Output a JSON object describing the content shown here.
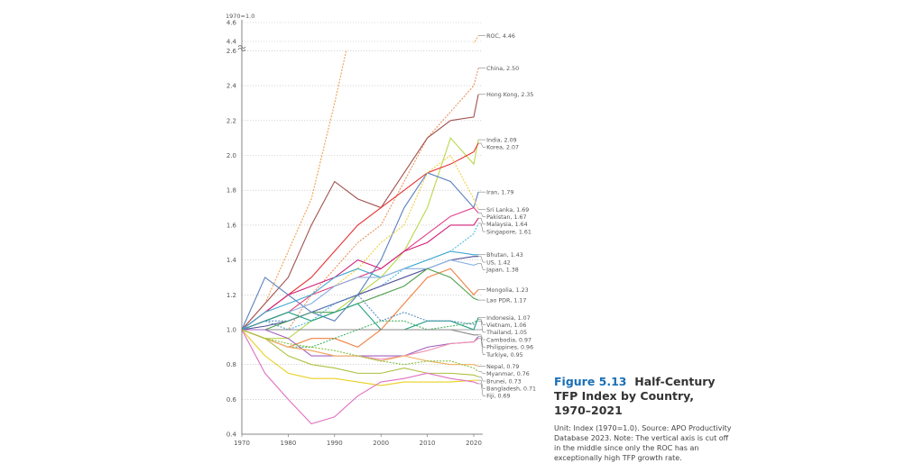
{
  "chart_data": {
    "type": "line",
    "title": "Half-Century TFP Index by Country, 1970–2021",
    "figure_label": "Figure 5.13",
    "unit_label": "1970=1.0",
    "note": "Unit: Index (1970=1.0). Source: APO Productivity Database 2023. Note: The vertical axis is cut off in the middle since only the ROC has an exceptionally high TFP growth rate.",
    "x_ticks": [
      "1970",
      "1980",
      "1990",
      "2000",
      "2010",
      "2020"
    ],
    "y_ticks_lower": [
      "0.4",
      "0.6",
      "0.8",
      "1.0",
      "1.2",
      "1.4",
      "1.6",
      "1.8",
      "2.0",
      "2.2",
      "2.4",
      "2.6"
    ],
    "y_ticks_upper": [
      "4.4",
      "4.6"
    ],
    "xlim": [
      1970,
      2021
    ],
    "ylim_lower": [
      0.4,
      2.6
    ],
    "ylim_upper": [
      4.4,
      4.6
    ],
    "axis_break": true,
    "grid": "horizontal dotted",
    "x": [
      1970,
      1975,
      1980,
      1985,
      1990,
      1995,
      2000,
      2005,
      2010,
      2015,
      2020,
      2021
    ],
    "series": [
      {
        "name": "ROC",
        "label": "ROC, 4.46",
        "color": "#f0a050",
        "dashed": true,
        "values": [
          1,
          1.15,
          1.45,
          1.75,
          2.3,
          2.9,
          3.2,
          3.5,
          3.9,
          4.2,
          4.38,
          4.46
        ]
      },
      {
        "name": "China",
        "label": "China, 2.50",
        "color": "#e8925a",
        "dashed": true,
        "values": [
          1,
          1.05,
          1.0,
          1.2,
          1.35,
          1.5,
          1.6,
          1.85,
          2.1,
          2.25,
          2.4,
          2.5
        ]
      },
      {
        "name": "Hong Kong",
        "label": "Hong Kong, 2.35",
        "color": "#a0524f",
        "dashed": false,
        "values": [
          1,
          1.15,
          1.3,
          1.6,
          1.85,
          1.75,
          1.7,
          1.9,
          2.1,
          2.2,
          2.22,
          2.35
        ]
      },
      {
        "name": "India",
        "label": "India, 2.09",
        "color": "#b8d84a",
        "dashed": false,
        "values": [
          1,
          0.95,
          0.95,
          1.05,
          1.1,
          1.2,
          1.3,
          1.45,
          1.7,
          2.1,
          1.95,
          2.09
        ]
      },
      {
        "name": "Korea",
        "label": "Korea, 2.07",
        "color": "#e63030",
        "dashed": false,
        "values": [
          1,
          1.1,
          1.2,
          1.3,
          1.45,
          1.6,
          1.7,
          1.8,
          1.9,
          1.95,
          2.02,
          2.07
        ]
      },
      {
        "name": "Iran",
        "label": "Iran, 1.79",
        "color": "#5b7fbf",
        "dashed": false,
        "values": [
          1,
          1.3,
          1.2,
          1.1,
          1.05,
          1.2,
          1.4,
          1.7,
          1.9,
          1.85,
          1.7,
          1.79
        ]
      },
      {
        "name": "Sri Lanka",
        "label": "Sri Lanka, 1.69",
        "color": "#f0d040",
        "dashed": true,
        "values": [
          1,
          1.05,
          1.1,
          1.2,
          1.25,
          1.35,
          1.5,
          1.6,
          1.9,
          2.0,
          1.75,
          1.69
        ]
      },
      {
        "name": "Pakistan",
        "label": "Pakistan, 1.67",
        "color": "#e0408a",
        "dashed": false,
        "values": [
          1,
          1.05,
          1.1,
          1.2,
          1.25,
          1.3,
          1.35,
          1.45,
          1.55,
          1.65,
          1.7,
          1.67
        ]
      },
      {
        "name": "Malaysia",
        "label": "Malaysia, 1.64",
        "color": "#d0207a",
        "dashed": false,
        "values": [
          1,
          1.1,
          1.2,
          1.25,
          1.3,
          1.4,
          1.35,
          1.45,
          1.5,
          1.6,
          1.6,
          1.64
        ]
      },
      {
        "name": "Singapore",
        "label": "Singapore, 1.61",
        "color": "#50b8e0",
        "dashed": true,
        "values": [
          1,
          1.05,
          1.0,
          1.05,
          1.15,
          1.2,
          1.25,
          1.35,
          1.4,
          1.45,
          1.55,
          1.61
        ]
      },
      {
        "name": "Bhutan",
        "label": "Bhutan, 1.43",
        "color": "#40a8d0",
        "dashed": false,
        "values": [
          1,
          1.1,
          1.15,
          1.2,
          1.3,
          1.35,
          1.3,
          1.35,
          1.4,
          1.45,
          1.43,
          1.43
        ]
      },
      {
        "name": "US",
        "label": "US, 1.42",
        "color": "#50509a",
        "dashed": false,
        "values": [
          1,
          1.02,
          1.05,
          1.1,
          1.15,
          1.2,
          1.25,
          1.3,
          1.35,
          1.4,
          1.42,
          1.42
        ]
      },
      {
        "name": "Japan",
        "label": "Japan, 1.38",
        "color": "#8ab0e0",
        "dashed": false,
        "values": [
          1,
          1.05,
          1.1,
          1.15,
          1.25,
          1.3,
          1.3,
          1.35,
          1.35,
          1.4,
          1.37,
          1.38
        ]
      },
      {
        "name": "Mongolia",
        "label": "Mongolia, 1.23",
        "color": "#f08040",
        "dashed": false,
        "values": [
          1,
          0.95,
          0.9,
          0.95,
          0.95,
          0.9,
          1.0,
          1.15,
          1.3,
          1.35,
          1.2,
          1.23
        ]
      },
      {
        "name": "Lao PDR",
        "label": "Lao PDR, 1.17",
        "color": "#50a050",
        "dashed": false,
        "values": [
          1,
          1.0,
          1.05,
          1.1,
          1.1,
          1.15,
          1.2,
          1.25,
          1.35,
          1.3,
          1.18,
          1.17
        ]
      },
      {
        "name": "Indonesia",
        "label": "Indonesia, 1.07",
        "color": "#20a080",
        "dashed": false,
        "values": [
          1,
          1.05,
          1.1,
          1.05,
          1.1,
          1.15,
          1.0,
          1.0,
          1.05,
          1.05,
          1.0,
          1.07
        ]
      },
      {
        "name": "Vietnam",
        "label": "Vietnam, 1.06",
        "color": "#40b060",
        "dashed": true,
        "values": [
          1,
          0.95,
          0.9,
          0.9,
          0.95,
          1.0,
          1.05,
          1.05,
          1.0,
          1.02,
          1.04,
          1.06
        ]
      },
      {
        "name": "Thailand",
        "label": "Thailand, 1.05",
        "color": "#5a90c0",
        "dashed": true,
        "values": [
          1,
          1.05,
          1.05,
          1.1,
          1.15,
          1.2,
          1.05,
          1.1,
          1.05,
          1.05,
          1.03,
          1.05
        ]
      },
      {
        "name": "Cambodia",
        "label": "Cambodia, 0.97",
        "color": "#888888",
        "dashed": false,
        "values": [
          1,
          1,
          1,
          1,
          1,
          1,
          1,
          1,
          1,
          1,
          0.97,
          0.97
        ]
      },
      {
        "name": "Philippines",
        "label": "Philippines, 0.96",
        "color": "#a060c0",
        "dashed": false,
        "values": [
          1,
          1.0,
          0.95,
          0.85,
          0.85,
          0.85,
          0.85,
          0.85,
          0.9,
          0.92,
          0.93,
          0.96
        ]
      },
      {
        "name": "Turkiye",
        "label": "Turkiye, 0.95",
        "color": "#f090b0",
        "dashed": false,
        "values": [
          1,
          0.95,
          0.9,
          0.88,
          0.85,
          0.85,
          0.83,
          0.85,
          0.88,
          0.92,
          0.93,
          0.95
        ]
      },
      {
        "name": "Nepal",
        "label": "Nepal, 0.79",
        "color": "#f0b060",
        "dashed": false,
        "values": [
          1,
          0.95,
          0.9,
          0.88,
          0.85,
          0.85,
          0.82,
          0.85,
          0.82,
          0.8,
          0.8,
          0.79
        ]
      },
      {
        "name": "Myanmar",
        "label": "Myanmar, 0.76",
        "color": "#80c040",
        "dashed": true,
        "values": [
          1,
          0.95,
          0.92,
          0.9,
          0.88,
          0.85,
          0.82,
          0.8,
          0.82,
          0.82,
          0.78,
          0.76
        ]
      },
      {
        "name": "Brunei",
        "label": "Brunei, 0.73",
        "color": "#b0c040",
        "dashed": false,
        "values": [
          1,
          0.95,
          0.85,
          0.8,
          0.78,
          0.75,
          0.75,
          0.78,
          0.75,
          0.75,
          0.74,
          0.73
        ]
      },
      {
        "name": "Bangladesh",
        "label": "Bangladesh, 0.71",
        "color": "#e8d020",
        "dashed": false,
        "values": [
          1,
          0.85,
          0.75,
          0.72,
          0.72,
          0.7,
          0.68,
          0.7,
          0.7,
          0.7,
          0.71,
          0.71
        ]
      },
      {
        "name": "Fiji",
        "label": "Fiji, 0.69",
        "color": "#e070c0",
        "dashed": false,
        "values": [
          1,
          0.75,
          0.6,
          0.46,
          0.5,
          0.62,
          0.7,
          0.72,
          0.75,
          0.72,
          0.7,
          0.69
        ]
      }
    ]
  }
}
